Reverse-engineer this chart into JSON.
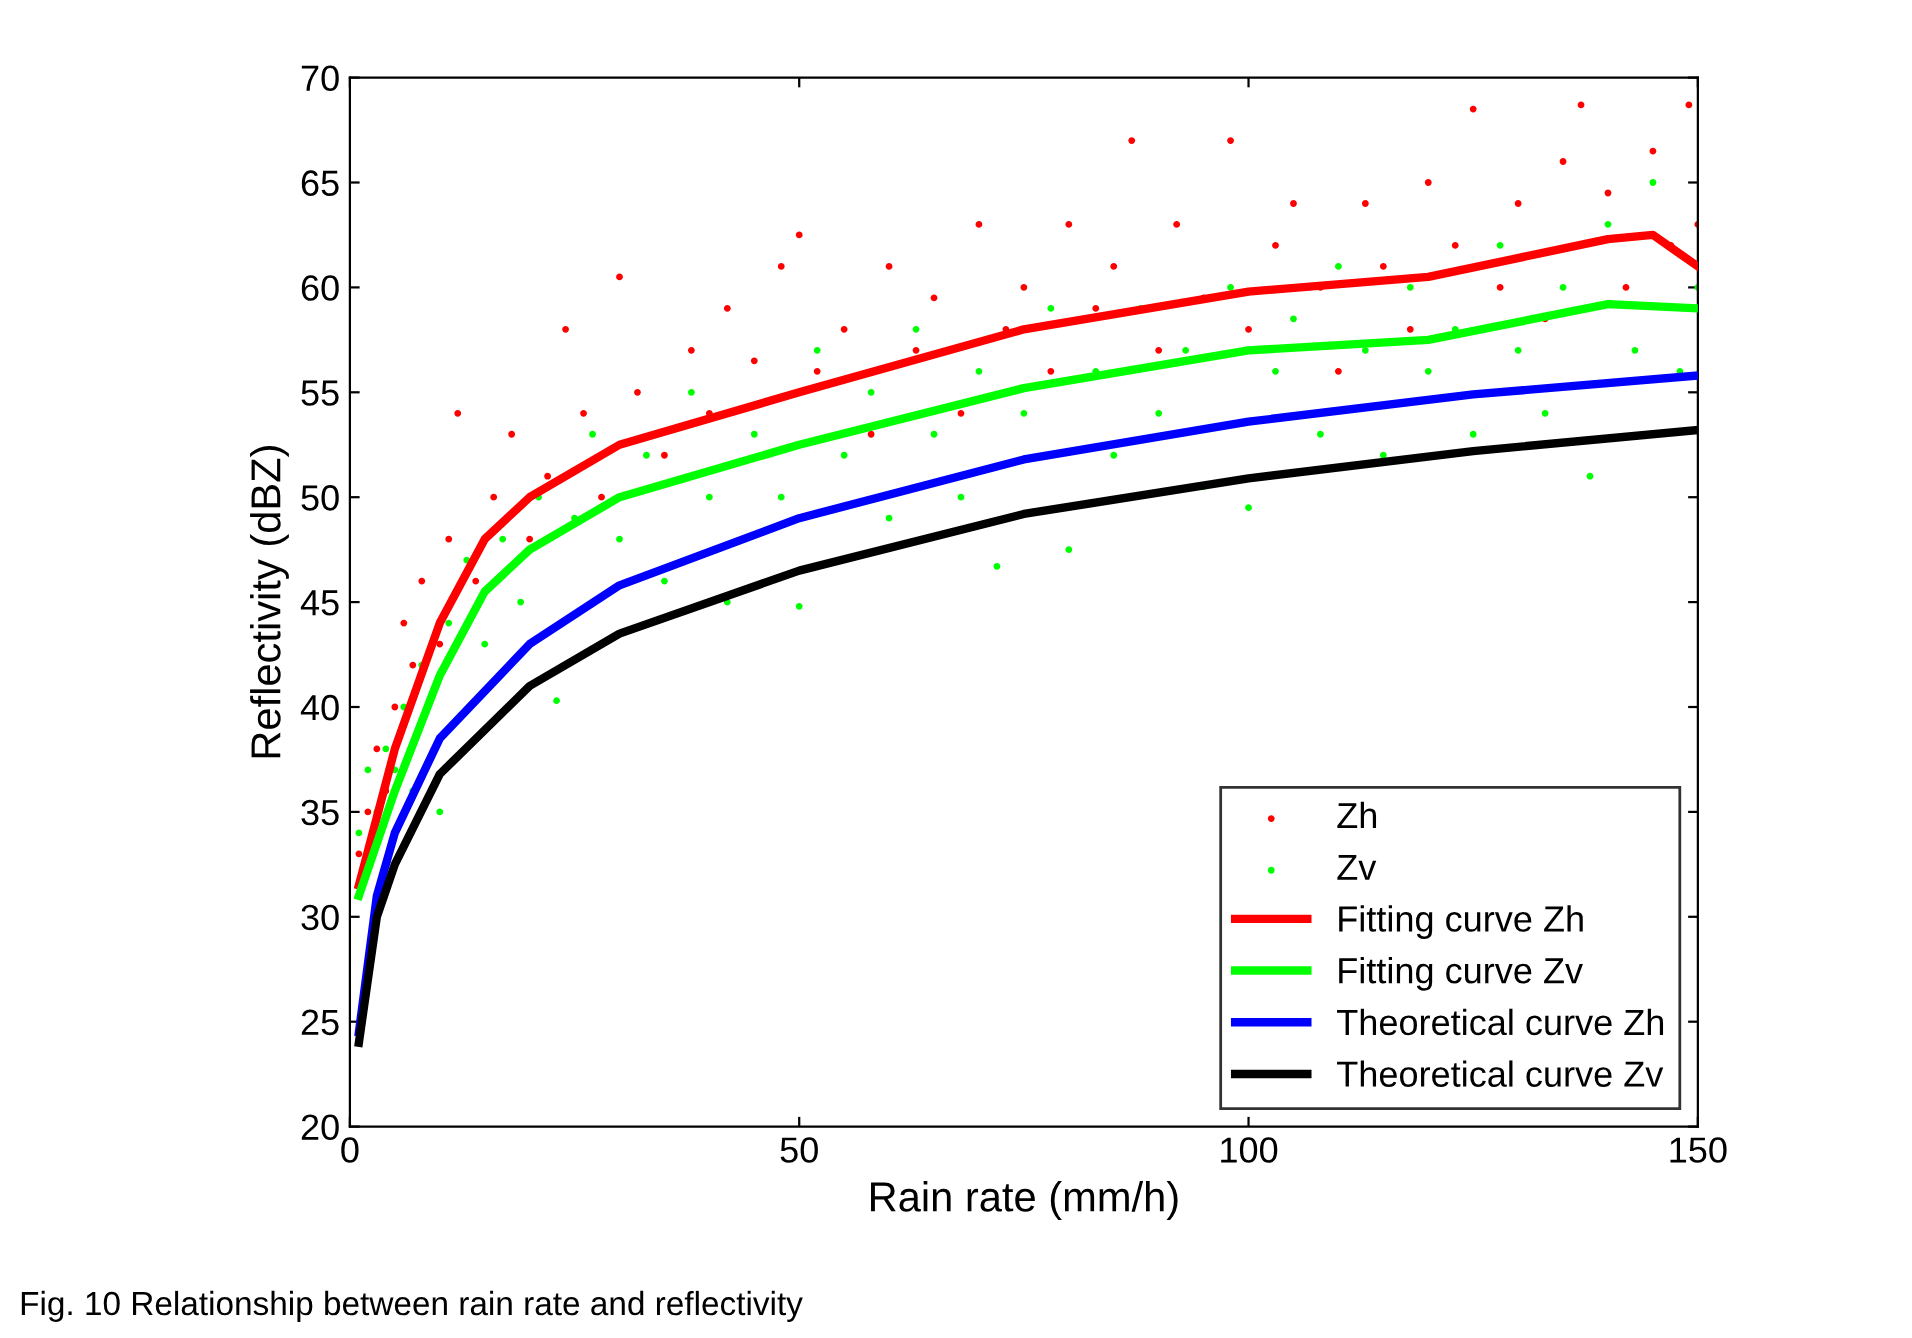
{
  "chart_data": {
    "type": "scatter",
    "xlabel": "Rain rate (mm/h)",
    "ylabel": "Reflectivity (dBZ)",
    "xlim": [
      0,
      150
    ],
    "xticks": [
      0,
      50,
      100,
      150
    ],
    "ylim": [
      20,
      70
    ],
    "yticks": [
      20,
      25,
      30,
      35,
      40,
      45,
      50,
      55,
      60,
      65,
      70
    ],
    "grid": false,
    "legend": "bottom right",
    "annotations": [
      "Fig. 10 Relationship between rain rate and reflectivity"
    ],
    "series": [
      {
        "name": "Zh",
        "marker": "circle",
        "color": "#ff0000",
        "x": [
          1,
          2,
          3,
          4,
          5,
          6,
          7,
          8,
          10,
          11,
          12,
          14,
          16,
          18,
          20,
          22,
          24,
          26,
          28,
          30,
          32,
          35,
          38,
          40,
          42,
          45,
          48,
          50,
          52,
          55,
          58,
          60,
          63,
          65,
          68,
          70,
          73,
          75,
          78,
          80,
          83,
          85,
          87,
          90,
          92,
          95,
          98,
          100,
          103,
          105,
          108,
          110,
          113,
          115,
          118,
          120,
          123,
          125,
          128,
          130,
          133,
          135,
          137,
          140,
          142,
          145,
          147,
          149,
          150
        ],
        "values": [
          33,
          35,
          38,
          36,
          40,
          44,
          42,
          46,
          43,
          48,
          54,
          46,
          50,
          53,
          48,
          51,
          58,
          54,
          50,
          60.5,
          55,
          52,
          57,
          54,
          59,
          56.5,
          61,
          62.5,
          56,
          58,
          53,
          61,
          57,
          59.5,
          54,
          63,
          58,
          60,
          56,
          63,
          59,
          61,
          67,
          57,
          63,
          59.5,
          67,
          58,
          62,
          64,
          60,
          56,
          64,
          61,
          58,
          65,
          62,
          68.5,
          60,
          64,
          58.5,
          66,
          68.7,
          64.5,
          60,
          66.5,
          62,
          68.7,
          63
        ]
      },
      {
        "name": "Zv",
        "marker": "circle",
        "color": "#00ff00",
        "x": [
          1,
          2,
          3,
          4,
          5,
          6,
          7,
          8,
          10,
          11,
          13,
          15,
          17,
          19,
          21,
          23,
          25,
          27,
          30,
          33,
          35,
          38,
          40,
          42,
          45,
          48,
          50,
          52,
          55,
          58,
          60,
          63,
          65,
          68,
          70,
          72,
          75,
          78,
          80,
          83,
          85,
          88,
          90,
          93,
          95,
          98,
          100,
          103,
          105,
          108,
          110,
          113,
          115,
          118,
          120,
          123,
          125,
          128,
          130,
          133,
          135,
          138,
          140,
          143,
          145,
          148,
          150
        ],
        "values": [
          34,
          37,
          35,
          38,
          37,
          40,
          36,
          42,
          35,
          44,
          47,
          43,
          48,
          45,
          50,
          40.3,
          49,
          53,
          48,
          52,
          46,
          55,
          50,
          45,
          53,
          50,
          44.8,
          57,
          52,
          55,
          49,
          58,
          53,
          50,
          56,
          46.7,
          54,
          59,
          47.5,
          56,
          52,
          59,
          54,
          57,
          50.5,
          60,
          49.5,
          56,
          58.5,
          53,
          61,
          57,
          52,
          60,
          56,
          58,
          53,
          62,
          57,
          54,
          60,
          51,
          63,
          57,
          65,
          56,
          60
        ]
      },
      {
        "name": "Fitting curve Zh",
        "type": "line",
        "line_style": "solid",
        "color": "#ff0000",
        "x": [
          1,
          5,
          10,
          15,
          20,
          30,
          50,
          75,
          100,
          120,
          140,
          145,
          150
        ],
        "values": [
          31.5,
          38,
          44,
          48,
          50,
          52.5,
          55,
          58,
          59.8,
          60.5,
          62.3,
          62.5,
          61
        ]
      },
      {
        "name": "Fitting curve Zv",
        "type": "line",
        "line_style": "solid",
        "color": "#00ff00",
        "x": [
          1,
          5,
          10,
          15,
          20,
          30,
          50,
          75,
          100,
          120,
          140,
          150
        ],
        "values": [
          31,
          36,
          41.5,
          45.5,
          47.5,
          50,
          52.5,
          55.2,
          57,
          57.5,
          59.2,
          59
        ]
      },
      {
        "name": "Theoretical curve Zh",
        "type": "line",
        "line_style": "solid",
        "color": "#0000ff",
        "x": [
          1,
          3,
          5,
          10,
          20,
          30,
          50,
          75,
          100,
          125,
          150
        ],
        "values": [
          24.5,
          31,
          34,
          38.5,
          43,
          45.8,
          49,
          51.8,
          53.6,
          54.9,
          55.8
        ]
      },
      {
        "name": "Theoretical curve Zv",
        "type": "line",
        "line_style": "solid",
        "color": "#000000",
        "x": [
          1,
          3,
          5,
          10,
          20,
          30,
          50,
          75,
          100,
          125,
          150
        ],
        "values": [
          24,
          30,
          32.5,
          36.8,
          41,
          43.5,
          46.5,
          49.2,
          50.9,
          52.2,
          53.2
        ]
      }
    ]
  }
}
